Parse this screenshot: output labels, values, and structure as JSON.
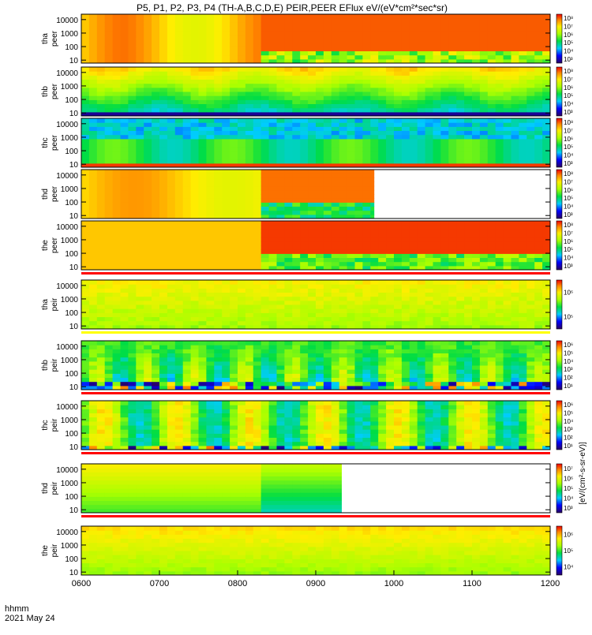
{
  "chart_data": {
    "type": "heatmap",
    "title": "P5, P1, P2, P3, P4 (TH-A,B,C,D,E) PEIR,PEER EFlux eV/(eV*cm²*sec*sr)",
    "x_label_line1": "hhmm",
    "x_label_line2": "2021 May 24",
    "x_ticks": [
      "0600",
      "0700",
      "0800",
      "0900",
      "1000",
      "1100",
      "1200"
    ],
    "x_range": [
      "0600",
      "1200"
    ],
    "y_ticks": [
      "10",
      "100",
      "1000",
      "10000"
    ],
    "y_scale": "log",
    "colorbar_label": "[eV/(cm²-s-sr-eV)]",
    "panels": [
      {
        "probe": "tha",
        "species": "peer",
        "label_top": "tha",
        "label_bottom": "peer",
        "data_end": "1200",
        "colorbar_ticks": [
          "10³",
          "10⁴",
          "10⁵",
          "10⁶",
          "10⁷",
          "10⁸"
        ]
      },
      {
        "probe": "thb",
        "species": "peer",
        "label_top": "thb",
        "label_bottom": "peer",
        "data_end": "1200",
        "colorbar_ticks": [
          "10³",
          "10⁴",
          "10⁵",
          "10⁶",
          "10⁷",
          "10⁸"
        ]
      },
      {
        "probe": "thc",
        "species": "peer",
        "label_top": "thc",
        "label_bottom": "peer",
        "data_end": "1200",
        "colorbar_ticks": [
          "10³",
          "10⁴",
          "10⁵",
          "10⁶",
          "10⁷",
          "10⁸"
        ]
      },
      {
        "probe": "thd",
        "species": "peer",
        "label_top": "thd",
        "label_bottom": "peer",
        "data_end": "0945",
        "colorbar_ticks": [
          "10³",
          "10⁴",
          "10⁵",
          "10⁶",
          "10⁷",
          "10⁸"
        ]
      },
      {
        "probe": "the",
        "species": "peer",
        "label_top": "the",
        "label_bottom": "peer",
        "data_end": "1200",
        "colorbar_ticks": [
          "10³",
          "10⁴",
          "10⁵",
          "10⁶",
          "10⁷",
          "10⁸"
        ]
      },
      {
        "probe": "tha",
        "species": "peir",
        "label_top": "tha",
        "label_bottom": "peir",
        "data_end": "1200",
        "colorbar_ticks": [
          "10⁵",
          "10⁶"
        ]
      },
      {
        "probe": "thb",
        "species": "peir",
        "label_top": "thb",
        "label_bottom": "peir",
        "data_end": "1200",
        "colorbar_ticks": [
          "10¹",
          "10²",
          "10³",
          "10⁴",
          "10⁵",
          "10⁶"
        ]
      },
      {
        "probe": "thc",
        "species": "peir",
        "label_top": "thc",
        "label_bottom": "peir",
        "data_end": "1200",
        "colorbar_ticks": [
          "10¹",
          "10²",
          "10³",
          "10⁴",
          "10⁵",
          "10⁶"
        ]
      },
      {
        "probe": "thd",
        "species": "peir",
        "label_top": "thd",
        "label_bottom": "peir",
        "data_end": "0920",
        "colorbar_ticks": [
          "10³",
          "10⁴",
          "10⁵",
          "10⁶",
          "10⁷"
        ]
      },
      {
        "probe": "the",
        "species": "peir",
        "label_top": "the",
        "label_bottom": "peir",
        "data_end": "1200",
        "colorbar_ticks": [
          "10⁴",
          "10⁵",
          "10⁶"
        ]
      }
    ],
    "colors": {
      "background": "#ffffff",
      "axis": "#000000",
      "mode_bar": "#ff0000",
      "mode_bar_alt": "#ffff00"
    }
  }
}
